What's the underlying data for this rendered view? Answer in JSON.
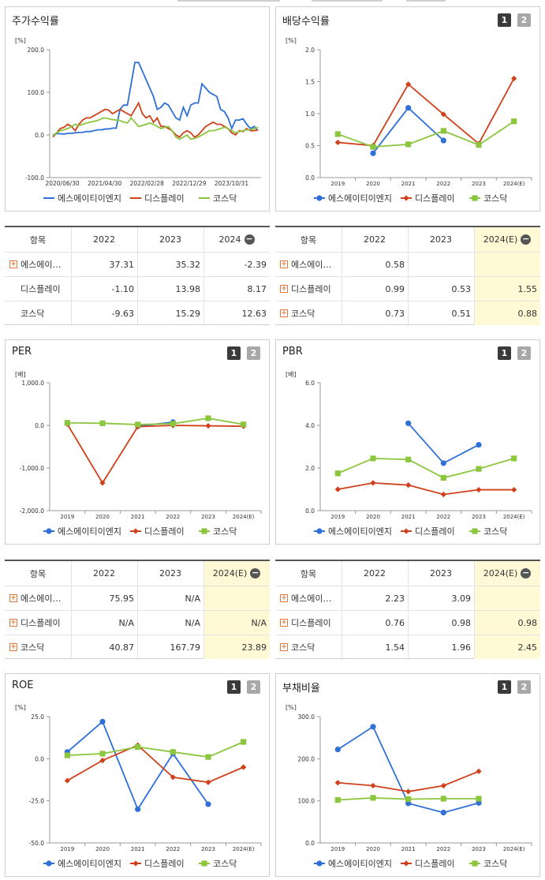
{
  "colors": {
    "s1": "#2e6fd8",
    "s2": "#d0401b",
    "s3": "#8cc63f"
  },
  "legend": [
    "에스에이티이엔지",
    "디스플레이",
    "코스닥"
  ],
  "panels": {
    "stock": {
      "title": "주가수익률",
      "unit": "[%]"
    },
    "div": {
      "title": "배당수익률",
      "unit": "[%]",
      "p1": "1",
      "p2": "2"
    },
    "per": {
      "title": "PER",
      "unit": "[배]",
      "p1": "1",
      "p2": "2"
    },
    "pbr": {
      "title": "PBR",
      "unit": "[배]",
      "p1": "1",
      "p2": "2"
    },
    "roe": {
      "title": "ROE",
      "unit": "[%]",
      "p1": "1",
      "p2": "2"
    },
    "debt": {
      "title": "부채비율",
      "unit": "[%]",
      "p1": "1",
      "p2": "2"
    }
  },
  "tables": {
    "stock": {
      "head": [
        "항목",
        "2022",
        "2023",
        "2024"
      ],
      "rows": [
        {
          "name": "에스에이…",
          "plus": true,
          "v": [
            "37.31",
            "35.32",
            "-2.39"
          ]
        },
        {
          "name": "디스플레이",
          "plus": false,
          "v": [
            "-1.10",
            "13.98",
            "8.17"
          ]
        },
        {
          "name": "코스닥",
          "plus": false,
          "v": [
            "-9.63",
            "15.29",
            "12.63"
          ]
        }
      ]
    },
    "div": {
      "head": [
        "항목",
        "2022",
        "2023",
        "2024(E)"
      ],
      "rows": [
        {
          "name": "에스에이…",
          "plus": true,
          "v": [
            "0.58",
            "",
            ""
          ]
        },
        {
          "name": "디스플레이",
          "plus": true,
          "v": [
            "0.99",
            "0.53",
            "1.55"
          ]
        },
        {
          "name": "코스닥",
          "plus": true,
          "v": [
            "0.73",
            "0.51",
            "0.88"
          ]
        }
      ]
    },
    "per": {
      "head": [
        "항목",
        "2022",
        "2023",
        "2024(E)"
      ],
      "rows": [
        {
          "name": "에스에이…",
          "plus": true,
          "v": [
            "75.95",
            "N/A",
            ""
          ]
        },
        {
          "name": "디스플레이",
          "plus": true,
          "v": [
            "N/A",
            "N/A",
            "N/A"
          ]
        },
        {
          "name": "코스닥",
          "plus": true,
          "v": [
            "40.87",
            "167.79",
            "23.89"
          ]
        }
      ]
    },
    "pbr": {
      "head": [
        "항목",
        "2022",
        "2023",
        "2024(E)"
      ],
      "rows": [
        {
          "name": "에스에이…",
          "plus": true,
          "v": [
            "2.23",
            "3.09",
            ""
          ]
        },
        {
          "name": "디스플레이",
          "plus": true,
          "v": [
            "0.76",
            "0.98",
            "0.98"
          ]
        },
        {
          "name": "코스닥",
          "plus": true,
          "v": [
            "1.54",
            "1.96",
            "2.45"
          ]
        }
      ]
    }
  },
  "chart_data": [
    {
      "id": "stock",
      "type": "line",
      "ylim": [
        -100,
        200
      ],
      "yticks": [
        "200.0",
        "100.0",
        "0.0",
        "-100.0"
      ],
      "xticks": [
        "2020/06/30",
        "2021/04/30",
        "2022/02/28",
        "2022/12/29",
        "2023/10/31"
      ],
      "series": [
        {
          "name": "에스에이티이엔지",
          "values": [
            0,
            3,
            3,
            2,
            4,
            4,
            5,
            6,
            6,
            8,
            8,
            10,
            12,
            12,
            14,
            14,
            16,
            16,
            60,
            70,
            70,
            120,
            170,
            170,
            150,
            130,
            110,
            90,
            60,
            65,
            75,
            70,
            55,
            40,
            35,
            65,
            45,
            70,
            75,
            75,
            120,
            110,
            100,
            95,
            90,
            60,
            55,
            40,
            15,
            35,
            35,
            38,
            25,
            15,
            20,
            10
          ]
        },
        {
          "name": "디스플레이",
          "values": [
            -5,
            5,
            15,
            18,
            25,
            20,
            10,
            25,
            35,
            40,
            40,
            45,
            50,
            55,
            60,
            58,
            50,
            55,
            60,
            55,
            50,
            45,
            60,
            75,
            50,
            40,
            45,
            30,
            40,
            20,
            20,
            15,
            10,
            0,
            -5,
            5,
            10,
            5,
            -5,
            0,
            10,
            20,
            25,
            30,
            25,
            25,
            20,
            15,
            5,
            0,
            10,
            8,
            15,
            10,
            10,
            12
          ]
        },
        {
          "name": "코스닥",
          "values": [
            -2,
            5,
            10,
            12,
            15,
            20,
            25,
            22,
            25,
            28,
            30,
            32,
            34,
            38,
            40,
            38,
            36,
            35,
            34,
            30,
            28,
            40,
            30,
            20,
            22,
            25,
            28,
            25,
            20,
            15,
            18,
            20,
            10,
            -5,
            -10,
            -5,
            0,
            -10,
            -8,
            -5,
            0,
            5,
            10,
            10,
            12,
            15,
            18,
            15,
            10,
            5,
            8,
            10,
            12,
            12,
            15,
            18
          ]
        }
      ]
    },
    {
      "id": "div",
      "type": "line",
      "categories": [
        "2019",
        "2020",
        "2021",
        "2022",
        "2023",
        "2024(E)"
      ],
      "ylim": [
        0,
        2
      ],
      "yticks": [
        "2.0",
        "1.5",
        "1.0",
        "0.5",
        "0.0"
      ],
      "series": [
        {
          "name": "에스에이티이엔지",
          "values": [
            null,
            0.38,
            1.09,
            0.58,
            null,
            null
          ]
        },
        {
          "name": "디스플레이",
          "values": [
            0.55,
            0.5,
            1.46,
            0.99,
            0.53,
            1.55
          ]
        },
        {
          "name": "코스닥",
          "values": [
            0.68,
            0.48,
            0.52,
            0.73,
            0.51,
            0.88
          ]
        }
      ]
    },
    {
      "id": "per",
      "type": "line",
      "categories": [
        "2019",
        "2020",
        "2021",
        "2022",
        "2023",
        "2024(E)"
      ],
      "ylim": [
        -2000,
        1000
      ],
      "yticks": [
        "1,000.0",
        "0.0",
        "-1,000.0",
        "-2,000.0"
      ],
      "series": [
        {
          "name": "에스에이티이엔지",
          "values": [
            null,
            null,
            -20,
            75.95,
            null,
            null
          ]
        },
        {
          "name": "디스플레이",
          "values": [
            30,
            -1350,
            -30,
            0,
            -10,
            -20
          ]
        },
        {
          "name": "코스닥",
          "values": [
            60,
            50,
            20,
            40.87,
            167.79,
            23.89
          ]
        }
      ]
    },
    {
      "id": "pbr",
      "type": "line",
      "categories": [
        "2019",
        "2020",
        "2021",
        "2022",
        "2023",
        "2024(E)"
      ],
      "ylim": [
        0,
        6
      ],
      "yticks": [
        "6.0",
        "4.0",
        "2.0",
        "0.0"
      ],
      "series": [
        {
          "name": "에스에이티이엔지",
          "values": [
            null,
            null,
            4.1,
            2.23,
            3.09,
            null
          ]
        },
        {
          "name": "디스플레이",
          "values": [
            1.0,
            1.3,
            1.2,
            0.76,
            0.98,
            0.98
          ]
        },
        {
          "name": "코스닥",
          "values": [
            1.75,
            2.45,
            2.4,
            1.54,
            1.96,
            2.45
          ]
        }
      ]
    },
    {
      "id": "roe",
      "type": "line",
      "categories": [
        "2019",
        "2020",
        "2021",
        "2022",
        "2023",
        "2024(E)"
      ],
      "ylim": [
        -50,
        25
      ],
      "yticks": [
        "25.0",
        "0.0",
        "-25.0",
        "-50.0"
      ],
      "series": [
        {
          "name": "에스에이티이엔지",
          "values": [
            4,
            22,
            -30,
            3,
            -27,
            null
          ]
        },
        {
          "name": "디스플레이",
          "values": [
            -13,
            -1,
            8,
            -11,
            -14,
            -5
          ]
        },
        {
          "name": "코스닥",
          "values": [
            2,
            3,
            7,
            4,
            1,
            10
          ]
        }
      ]
    },
    {
      "id": "debt",
      "type": "line",
      "categories": [
        "2019",
        "2020",
        "2021",
        "2022",
        "2023",
        "2024(E)"
      ],
      "ylim": [
        0,
        300
      ],
      "yticks": [
        "300.0",
        "200.0",
        "100.0",
        "0.0"
      ],
      "series": [
        {
          "name": "에스에이티이엔지",
          "values": [
            222,
            276,
            94,
            72,
            95,
            null
          ]
        },
        {
          "name": "디스플레이",
          "values": [
            143,
            136,
            122,
            136,
            170,
            null
          ]
        },
        {
          "name": "코스닥",
          "values": [
            102,
            107,
            104,
            105,
            105,
            null
          ]
        }
      ]
    }
  ]
}
